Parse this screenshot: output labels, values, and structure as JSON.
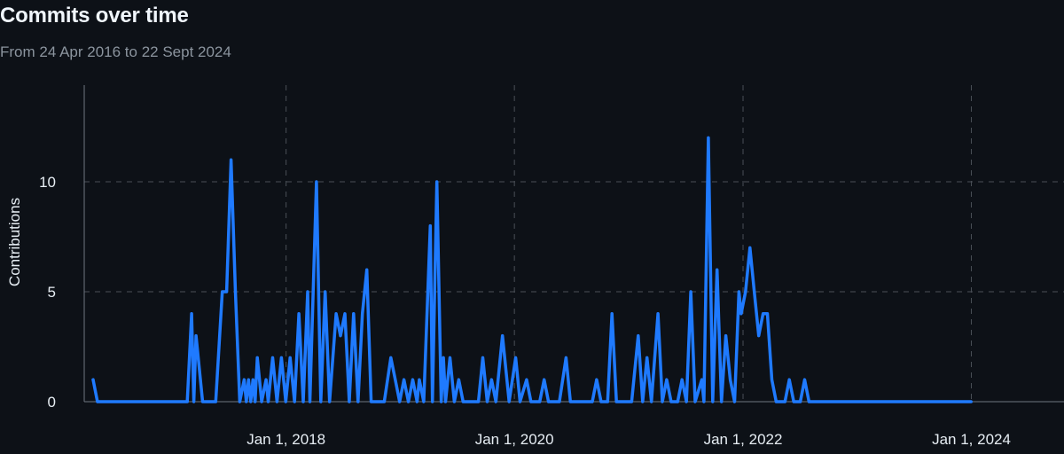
{
  "header": {
    "title": "Commits over time",
    "subtitle": "From 24 Apr 2016 to 22 Sept 2024"
  },
  "colors": {
    "background": "#0d1117",
    "line": "#1f7aff",
    "grid": "#4a4f57",
    "axis": "#6e7681"
  },
  "chart_data": {
    "type": "line",
    "title": "Commits over time",
    "subtitle": "From 24 Apr 2016 to 22 Sept 2024",
    "xlabel": "",
    "ylabel": "Contributions",
    "xlim": [
      "2016-04-24",
      "2024-09-22"
    ],
    "ylim": [
      0,
      14
    ],
    "y_ticks": [
      0,
      5,
      10
    ],
    "x_ticks": [
      {
        "date": "2018-01-01",
        "label": "Jan 1, 2018"
      },
      {
        "date": "2020-01-01",
        "label": "Jan 1, 2020"
      },
      {
        "date": "2022-01-01",
        "label": "Jan 1, 2022"
      },
      {
        "date": "2024-01-01",
        "label": "Jan 1, 2024"
      }
    ],
    "grid": true,
    "series": [
      {
        "values": [
          [
            "2016-04-24",
            1
          ],
          [
            "2016-05-08",
            0
          ],
          [
            "2017-02-19",
            0
          ],
          [
            "2017-03-05",
            4
          ],
          [
            "2017-03-12",
            0
          ],
          [
            "2017-03-19",
            3
          ],
          [
            "2017-04-09",
            0
          ],
          [
            "2017-05-21",
            0
          ],
          [
            "2017-06-11",
            5
          ],
          [
            "2017-06-25",
            5
          ],
          [
            "2017-07-09",
            11
          ],
          [
            "2017-07-23",
            5
          ],
          [
            "2017-08-06",
            0
          ],
          [
            "2017-08-20",
            1
          ],
          [
            "2017-08-27",
            0
          ],
          [
            "2017-09-03",
            1
          ],
          [
            "2017-09-10",
            0
          ],
          [
            "2017-09-17",
            1
          ],
          [
            "2017-09-24",
            0
          ],
          [
            "2017-10-01",
            2
          ],
          [
            "2017-10-15",
            0
          ],
          [
            "2017-10-29",
            1
          ],
          [
            "2017-11-05",
            0
          ],
          [
            "2017-11-19",
            2
          ],
          [
            "2017-12-03",
            0
          ],
          [
            "2017-12-17",
            2
          ],
          [
            "2017-12-31",
            0
          ],
          [
            "2018-01-14",
            2
          ],
          [
            "2018-01-28",
            0
          ],
          [
            "2018-02-11",
            4
          ],
          [
            "2018-02-25",
            0
          ],
          [
            "2018-03-11",
            5
          ],
          [
            "2018-03-18",
            0
          ],
          [
            "2018-04-08",
            10
          ],
          [
            "2018-04-22",
            0
          ],
          [
            "2018-05-06",
            5
          ],
          [
            "2018-05-20",
            0
          ],
          [
            "2018-06-10",
            4
          ],
          [
            "2018-06-24",
            3
          ],
          [
            "2018-07-08",
            4
          ],
          [
            "2018-07-22",
            0
          ],
          [
            "2018-08-05",
            4
          ],
          [
            "2018-08-19",
            0
          ],
          [
            "2018-09-02",
            4
          ],
          [
            "2018-09-16",
            6
          ],
          [
            "2018-09-30",
            0
          ],
          [
            "2018-11-11",
            0
          ],
          [
            "2018-12-02",
            2
          ],
          [
            "2018-12-16",
            1
          ],
          [
            "2018-12-30",
            0
          ],
          [
            "2019-01-13",
            1
          ],
          [
            "2019-01-27",
            0
          ],
          [
            "2019-02-10",
            1
          ],
          [
            "2019-02-24",
            0
          ],
          [
            "2019-03-03",
            1
          ],
          [
            "2019-03-17",
            0
          ],
          [
            "2019-04-07",
            8
          ],
          [
            "2019-04-14",
            0
          ],
          [
            "2019-04-28",
            10
          ],
          [
            "2019-05-12",
            0
          ],
          [
            "2019-05-19",
            2
          ],
          [
            "2019-05-26",
            0
          ],
          [
            "2019-06-09",
            2
          ],
          [
            "2019-06-23",
            0
          ],
          [
            "2019-07-07",
            1
          ],
          [
            "2019-07-21",
            0
          ],
          [
            "2019-09-08",
            0
          ],
          [
            "2019-09-22",
            2
          ],
          [
            "2019-10-06",
            0
          ],
          [
            "2019-10-20",
            1
          ],
          [
            "2019-11-03",
            0
          ],
          [
            "2019-11-24",
            3
          ],
          [
            "2019-12-15",
            0
          ],
          [
            "2020-01-05",
            2
          ],
          [
            "2020-01-19",
            0
          ],
          [
            "2020-02-09",
            1
          ],
          [
            "2020-02-23",
            0
          ],
          [
            "2020-03-22",
            0
          ],
          [
            "2020-04-05",
            1
          ],
          [
            "2020-04-19",
            0
          ],
          [
            "2020-05-24",
            0
          ],
          [
            "2020-06-14",
            2
          ],
          [
            "2020-06-28",
            0
          ],
          [
            "2020-09-06",
            0
          ],
          [
            "2020-09-20",
            1
          ],
          [
            "2020-10-04",
            0
          ],
          [
            "2020-10-25",
            0
          ],
          [
            "2020-11-08",
            4
          ],
          [
            "2020-11-22",
            0
          ],
          [
            "2021-01-10",
            0
          ],
          [
            "2021-01-31",
            3
          ],
          [
            "2021-02-14",
            0
          ],
          [
            "2021-02-28",
            2
          ],
          [
            "2021-03-14",
            0
          ],
          [
            "2021-04-04",
            4
          ],
          [
            "2021-04-18",
            0
          ],
          [
            "2021-05-02",
            1
          ],
          [
            "2021-05-16",
            0
          ],
          [
            "2021-06-06",
            0
          ],
          [
            "2021-06-20",
            1
          ],
          [
            "2021-07-04",
            0
          ],
          [
            "2021-07-18",
            5
          ],
          [
            "2021-08-01",
            0
          ],
          [
            "2021-08-22",
            1
          ],
          [
            "2021-08-29",
            0
          ],
          [
            "2021-09-12",
            12
          ],
          [
            "2021-09-26",
            0
          ],
          [
            "2021-10-10",
            6
          ],
          [
            "2021-10-24",
            0
          ],
          [
            "2021-11-07",
            3
          ],
          [
            "2021-11-21",
            1
          ],
          [
            "2021-12-05",
            0
          ],
          [
            "2021-12-19",
            5
          ],
          [
            "2021-12-26",
            4
          ],
          [
            "2022-01-09",
            5
          ],
          [
            "2022-01-23",
            7
          ],
          [
            "2022-02-06",
            5
          ],
          [
            "2022-02-20",
            3
          ],
          [
            "2022-03-06",
            4
          ],
          [
            "2022-03-20",
            4
          ],
          [
            "2022-04-03",
            1
          ],
          [
            "2022-04-17",
            0
          ],
          [
            "2022-05-15",
            0
          ],
          [
            "2022-05-29",
            1
          ],
          [
            "2022-06-12",
            0
          ],
          [
            "2022-07-03",
            0
          ],
          [
            "2022-07-17",
            1
          ],
          [
            "2022-07-31",
            0
          ],
          [
            "2023-12-31",
            0
          ]
        ]
      }
    ]
  }
}
